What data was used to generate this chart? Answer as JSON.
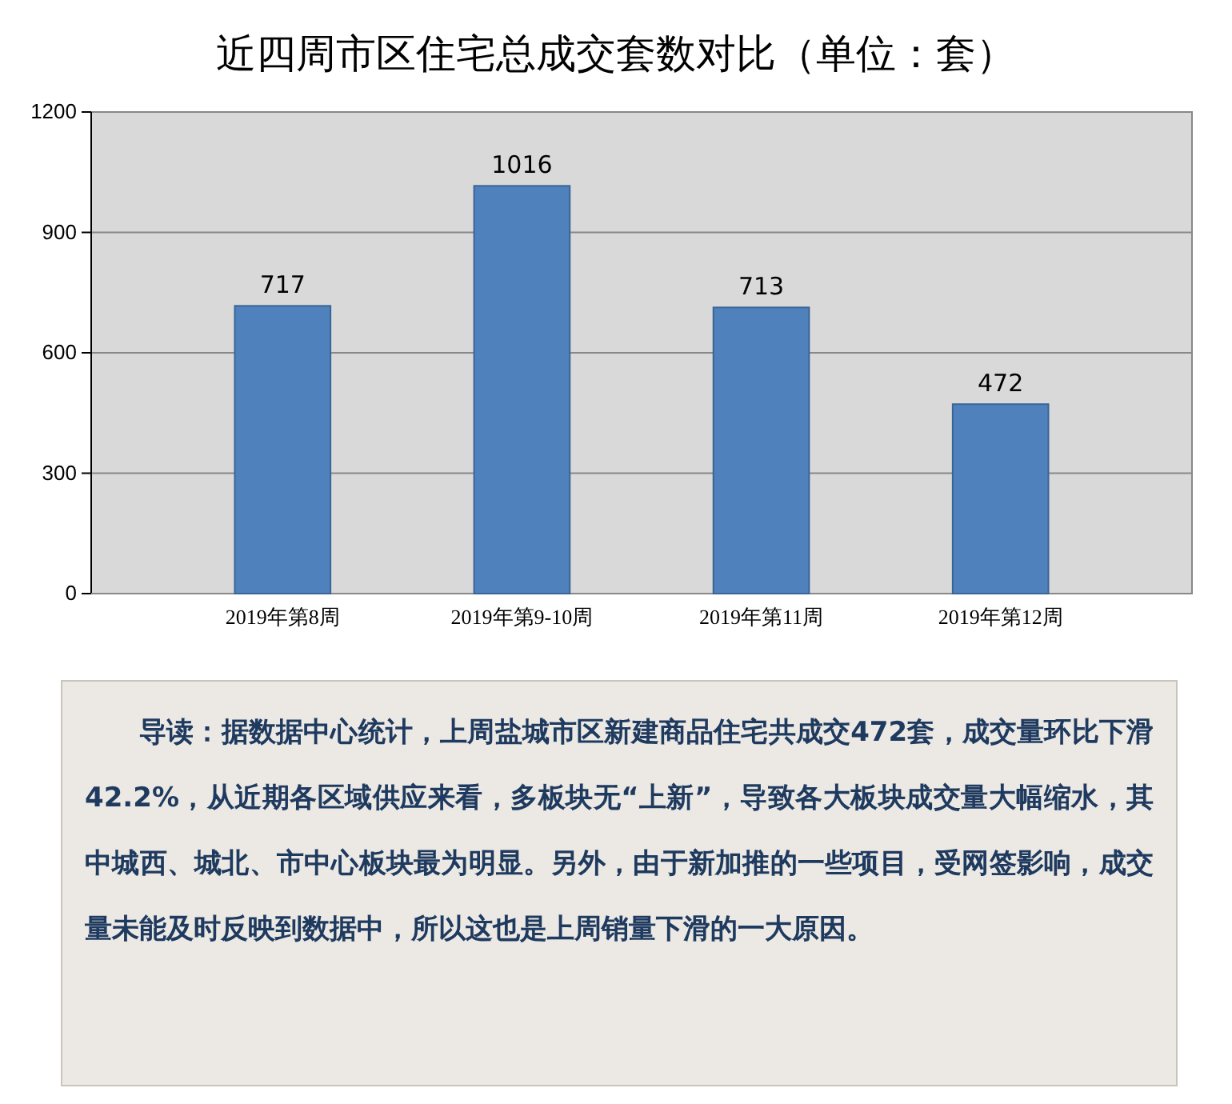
{
  "chart_data": {
    "type": "bar",
    "title": "近四周市区住宅总成交套数对比（单位：套）",
    "categories": [
      "2019年第8周",
      "2019年第9-10周",
      "2019年第11周",
      "2019年第12周"
    ],
    "values": [
      717,
      1016,
      713,
      472
    ],
    "color": "#4f81bd",
    "ylim": [
      0,
      1200
    ],
    "yticks": [
      0,
      300,
      600,
      900,
      1200
    ],
    "grid": "y",
    "data_labels": true,
    "annotations": [
      "导读：据数据中心统计，上周盐城市区新建商品住宅共成交472套，成交量环比下滑42.2%，从近期各区域供应来看，多板块无“上新”，导致各大板块成交量大幅缩水，其中城西、城北、市中心板块最为明显。另外，由于新加推的一些项目，受网签影响，成交量未能及时反映到数据中，所以这也是上周销量下滑的一大原因。"
    ]
  }
}
